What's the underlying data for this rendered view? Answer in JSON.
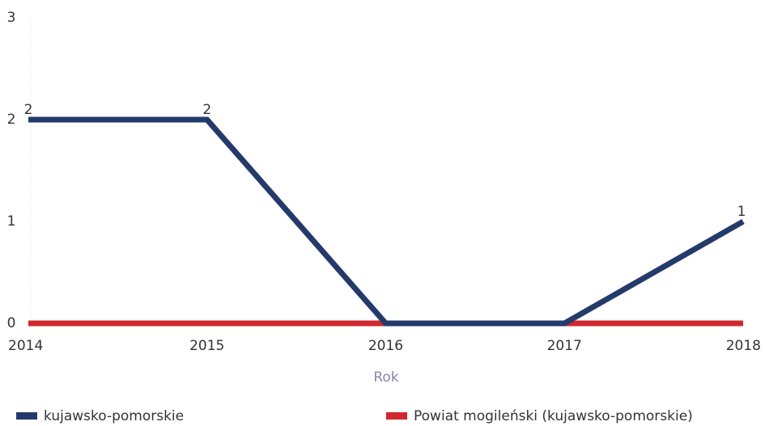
{
  "chart_data": {
    "type": "line",
    "x_label": "Rok",
    "categories": [
      "2014",
      "2015",
      "2016",
      "2017",
      "2018"
    ],
    "series": [
      {
        "name": "kujawsko-pomorskie",
        "color": "#243a6b",
        "values": [
          2,
          2,
          0,
          0,
          1
        ],
        "value_labels": [
          "2",
          "2",
          null,
          null,
          "1"
        ]
      },
      {
        "name": "Powiat mogileński (kujawsko-pomorskie)",
        "color": "#d0282e",
        "values": [
          0,
          0,
          0,
          0,
          0
        ]
      }
    ],
    "ylim": [
      0,
      3
    ],
    "yticks": [
      0,
      1,
      2,
      3
    ]
  }
}
